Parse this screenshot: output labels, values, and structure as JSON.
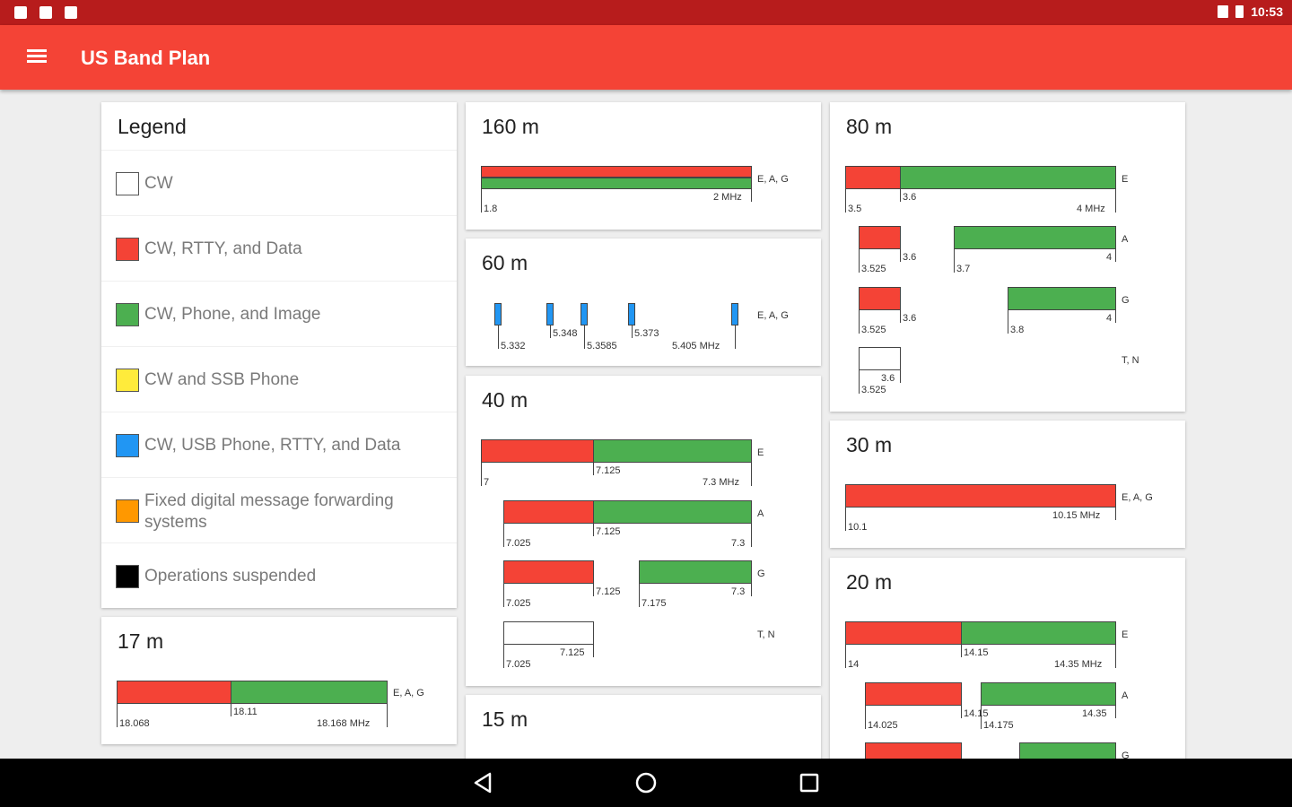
{
  "status_bar": {
    "time": "10:53"
  },
  "app_bar": {
    "title": "US Band Plan"
  },
  "legend": {
    "title": "Legend",
    "items": [
      {
        "label": "CW",
        "color": "#ffffff"
      },
      {
        "label": "CW, RTTY, and Data",
        "color": "#f44336"
      },
      {
        "label": "CW, Phone, and Image",
        "color": "#4caf50"
      },
      {
        "label": "CW and SSB Phone",
        "color": "#ffeb3b"
      },
      {
        "label": "CW, USB Phone, RTTY, and Data",
        "color": "#2196f3"
      },
      {
        "label": "Fixed digital message forwarding systems",
        "color": "#ff9800"
      },
      {
        "label": "Operations suspended",
        "color": "#000000"
      }
    ]
  },
  "bands": {
    "b160": {
      "title": "160 m",
      "rows": [
        {
          "class": "E, A, G",
          "labels": [
            "1.8",
            "2 MHz"
          ]
        }
      ]
    },
    "b60": {
      "title": "60 m",
      "rows": [
        {
          "class": "E, A, G",
          "labels": [
            "5.332",
            "5.348",
            "5.3585",
            "5.373",
            "5.405 MHz"
          ]
        }
      ]
    },
    "b40": {
      "title": "40 m",
      "rows": [
        {
          "class": "E",
          "labels": [
            "7",
            "7.125",
            "7.3 MHz"
          ]
        },
        {
          "class": "A",
          "labels": [
            "7.025",
            "7.125",
            "7.3"
          ]
        },
        {
          "class": "G",
          "labels": [
            "7.025",
            "7.125",
            "7.175",
            "7.3"
          ]
        },
        {
          "class": "T, N",
          "labels": [
            "7.025",
            "7.125"
          ]
        }
      ]
    },
    "b15": {
      "title": "15 m"
    },
    "b80": {
      "title": "80 m",
      "rows": [
        {
          "class": "E",
          "labels": [
            "3.5",
            "3.6",
            "4 MHz"
          ]
        },
        {
          "class": "A",
          "labels": [
            "3.525",
            "3.6",
            "3.7",
            "4"
          ]
        },
        {
          "class": "G",
          "labels": [
            "3.525",
            "3.6",
            "3.8",
            "4"
          ]
        },
        {
          "class": "T, N",
          "labels": [
            "3.525",
            "3.6"
          ]
        }
      ]
    },
    "b30": {
      "title": "30 m",
      "rows": [
        {
          "class": "E, A, G",
          "labels": [
            "10.1",
            "10.15 MHz"
          ]
        }
      ]
    },
    "b20": {
      "title": "20 m",
      "rows": [
        {
          "class": "E",
          "labels": [
            "14",
            "14.15",
            "14.35 MHz"
          ]
        },
        {
          "class": "A",
          "labels": [
            "14.025",
            "14.15",
            "14.175",
            "14.35"
          ]
        },
        {
          "class": "G",
          "labels": []
        }
      ]
    },
    "b17": {
      "title": "17 m",
      "rows": [
        {
          "class": "E, A, G",
          "labels": [
            "18.068",
            "18.11",
            "18.168 MHz"
          ]
        }
      ]
    }
  }
}
